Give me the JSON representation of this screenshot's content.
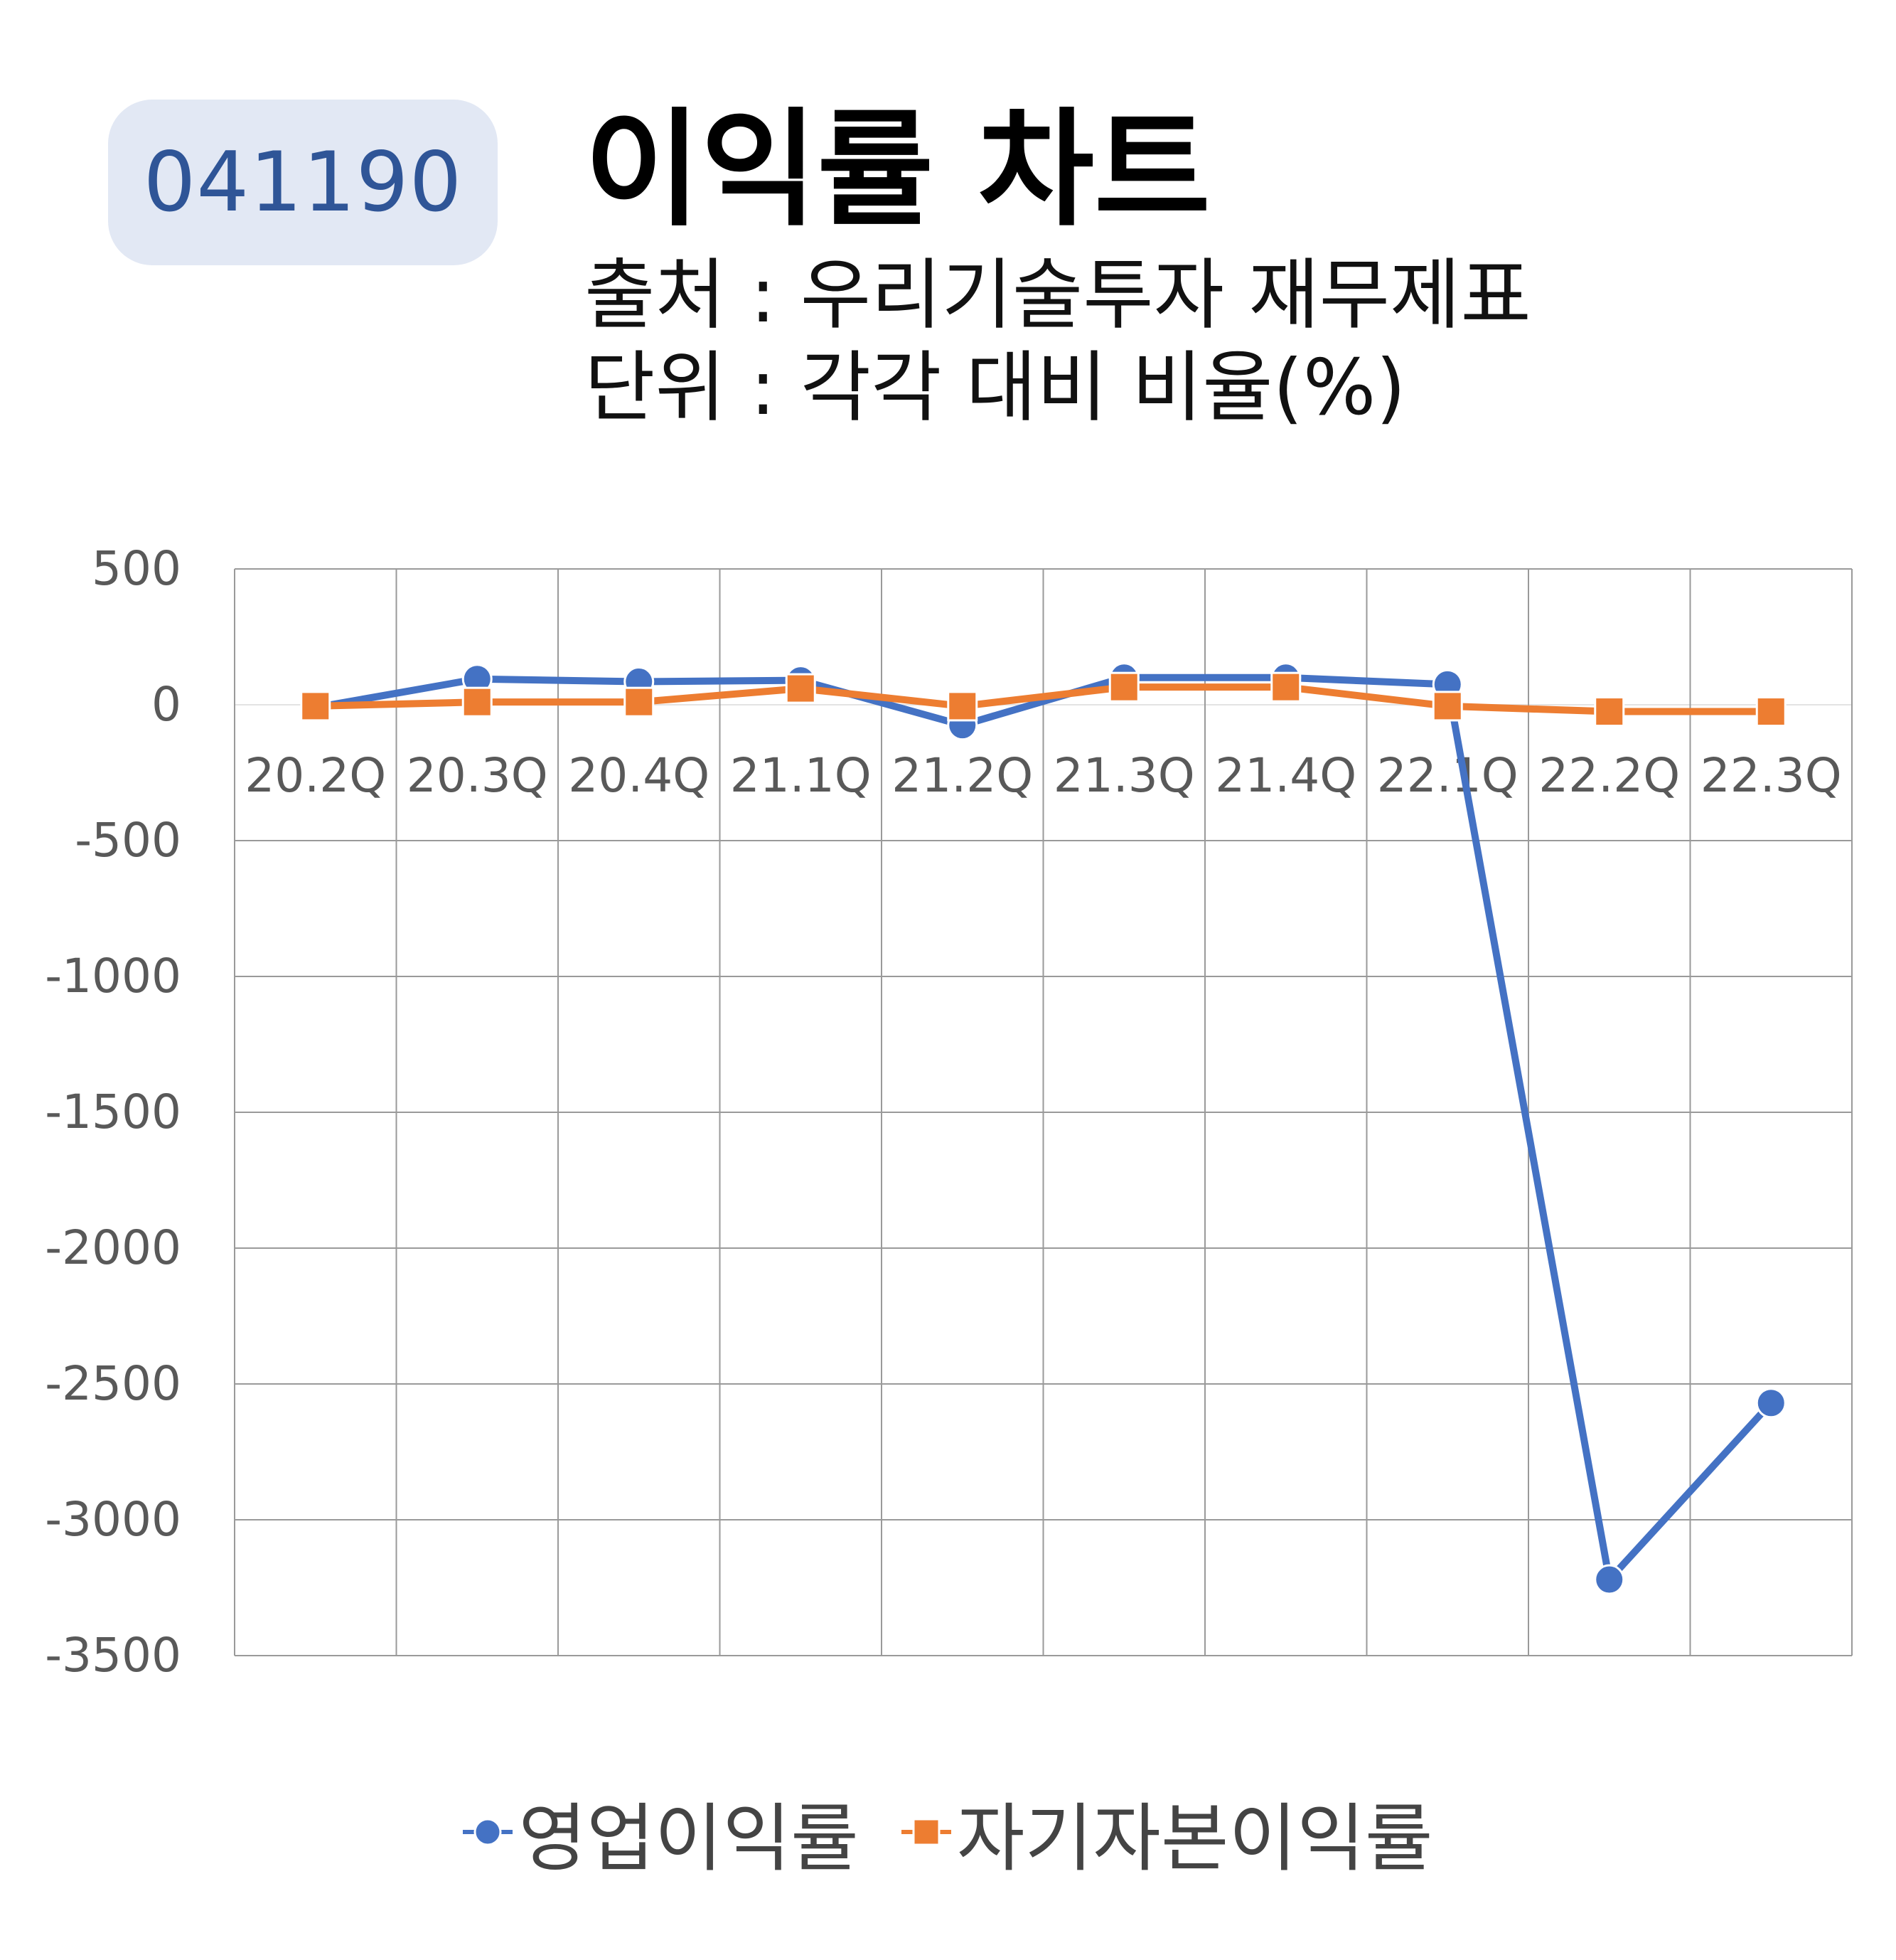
{
  "code": "041190",
  "title": "이익률 차트",
  "source": "출처 : 우리기술투자 재무제표",
  "unit": "단위 : 각각 대비 비율(%)",
  "colors": {
    "series1": "#4472c4",
    "series2": "#ed7d31",
    "badge_bg": "#e2e8f4",
    "badge_text": "#2f5597"
  },
  "chart_data": {
    "type": "line",
    "categories": [
      "20.2Q",
      "20.3Q",
      "20.4Q",
      "21.1Q",
      "21.2Q",
      "21.3Q",
      "21.4Q",
      "22.1Q",
      "22.2Q",
      "22.3Q"
    ],
    "series": [
      {
        "name": "영업이익률",
        "values": [
          -10,
          95,
          85,
          90,
          -75,
          100,
          100,
          75,
          -3220,
          -2570
        ],
        "marker": "circle"
      },
      {
        "name": "자기자본이익률",
        "values": [
          -5,
          10,
          10,
          60,
          -5,
          65,
          65,
          -5,
          -25,
          -25
        ],
        "marker": "square"
      }
    ],
    "yticks": [
      500,
      0,
      -500,
      -1000,
      -1500,
      -2000,
      -2500,
      -3000,
      -3500
    ],
    "ylim": [
      -3500,
      500
    ],
    "grid": true,
    "legend": "bottom"
  }
}
